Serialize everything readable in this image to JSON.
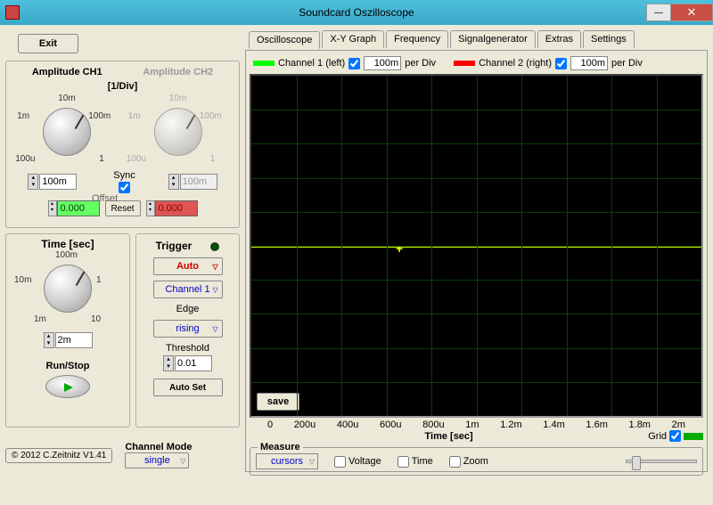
{
  "window": {
    "title": "Soundcard Oszilloscope"
  },
  "exit": "Exit",
  "amplitude": {
    "ch1_label": "Amplitude CH1",
    "ch2_label": "Amplitude CH2",
    "div_label": "[1/Div]",
    "knob_labels": {
      "t": "10m",
      "tr": "100m",
      "r": "100m",
      "br": "",
      "b": "",
      "bl": "100u",
      "l": "1m"
    },
    "ch1_value": "100m",
    "ch2_value": "100m",
    "sync_label": "Sync",
    "sync_checked": true,
    "offset_label": "Offset",
    "ch1_offset": "0.000",
    "ch2_offset": "0.000",
    "reset": "Reset"
  },
  "time": {
    "title": "Time [sec]",
    "labels": {
      "t": "100m",
      "r": "1",
      "br": "10",
      "b": "",
      "bl": "1m",
      "l": "10m"
    },
    "value": "2m",
    "runstop": "Run/Stop"
  },
  "trigger": {
    "title": "Trigger",
    "mode": "Auto",
    "channel": "Channel 1",
    "edge_label": "Edge",
    "edge": "rising",
    "threshold_label": "Threshold",
    "threshold": "0.01",
    "autoset": "Auto Set"
  },
  "channel_mode": {
    "label": "Channel Mode",
    "value": "single"
  },
  "copyright": "© 2012  C.Zeitnitz V1.41",
  "tabs": [
    "Oscilloscope",
    "X-Y Graph",
    "Frequency",
    "Signalgenerator",
    "Extras",
    "Settings"
  ],
  "active_tab": 0,
  "legend": {
    "ch1": "Channel 1 (left)",
    "ch1_val": "100m",
    "per_div": "per Div",
    "ch2": "Channel 2 (right)",
    "ch2_val": "100m"
  },
  "scope": {
    "grid_cols": 10,
    "grid_rows": 10,
    "trace_color": "#ccff00",
    "xticks": [
      "0",
      "200u",
      "400u",
      "600u",
      "800u",
      "1m",
      "1.2m",
      "1.4m",
      "1.6m",
      "1.8m",
      "2m"
    ],
    "xlabel": "Time [sec]",
    "save": "save",
    "grid_label": "Grid"
  },
  "measure": {
    "title": "Measure",
    "cursors": "cursors",
    "voltage": "Voltage",
    "time": "Time",
    "zoom": "Zoom"
  }
}
